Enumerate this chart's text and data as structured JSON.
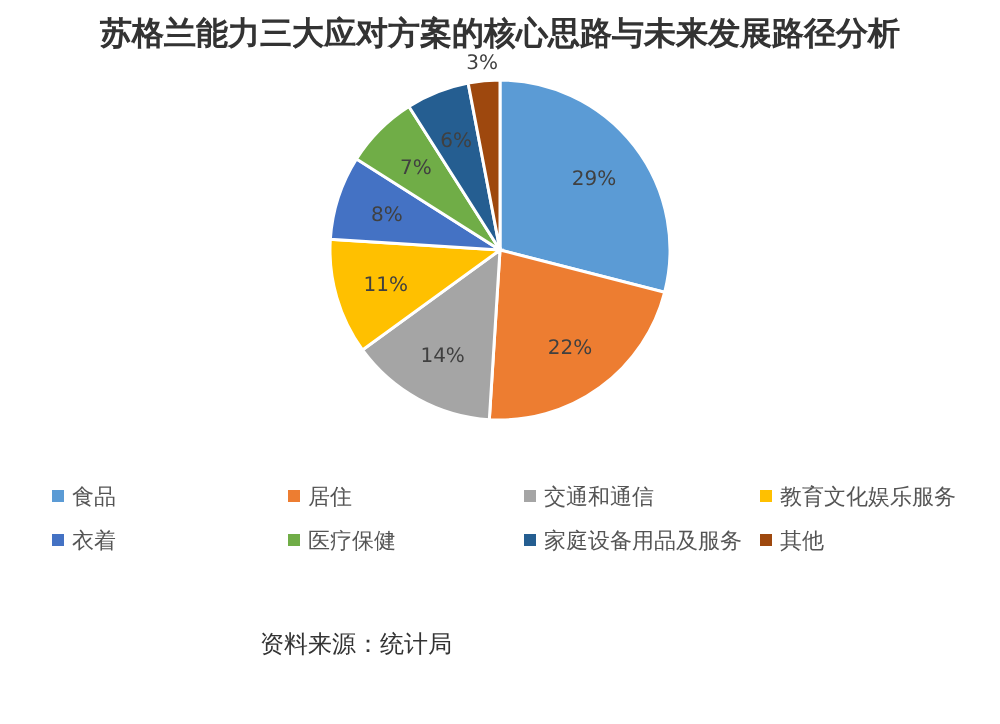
{
  "chart_data": {
    "type": "pie",
    "title": "苏格兰能力三大应对方案的核心思路与未来发展路径分析",
    "categories": [
      "食品",
      "居住",
      "交通和通信",
      "教育文化娱乐服务",
      "衣着",
      "医疗保健",
      "家庭设备用品及服务",
      "其他"
    ],
    "values": [
      29,
      22,
      14,
      11,
      8,
      7,
      6,
      3
    ],
    "colors": [
      "#5b9bd5",
      "#ed7d31",
      "#a5a5a5",
      "#ffc000",
      "#4472c4",
      "#70ad47",
      "#255e91",
      "#9e480e"
    ],
    "value_labels": [
      "29%",
      "22%",
      "14%",
      "11%",
      "8%",
      "7%",
      "6%",
      "3%"
    ],
    "legend": "bottom",
    "annotations": [
      "资料来源：统计局"
    ]
  }
}
